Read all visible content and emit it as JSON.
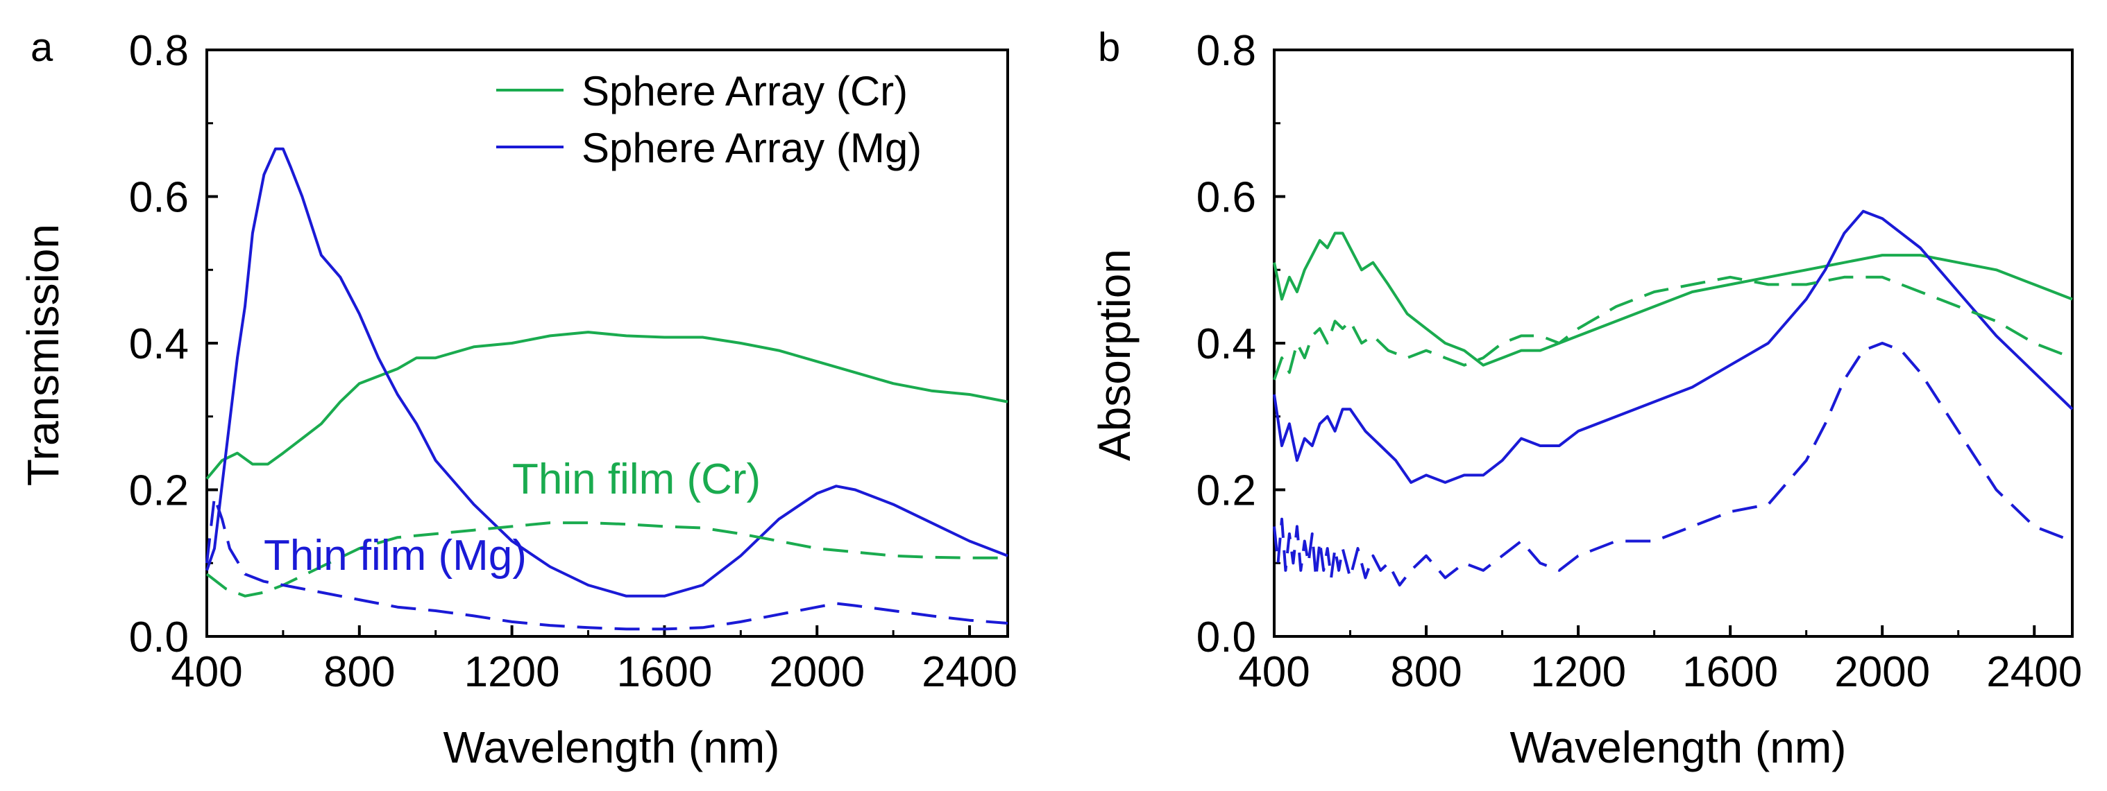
{
  "colors": {
    "green": "#1aab4f",
    "blue": "#1a1ad6",
    "axis": "#000000"
  },
  "legend": [
    {
      "label": "Sphere Array (Cr)",
      "color": "#1aab4f"
    },
    {
      "label": "Sphere Array (Mg)",
      "color": "#1a1ad6"
    }
  ],
  "chart_data": [
    {
      "type": "line",
      "panel_label": "a",
      "title": "",
      "xlabel": "Wavelength (nm)",
      "ylabel": "Transmission",
      "xlim": [
        400,
        2500
      ],
      "ylim": [
        0.0,
        0.8
      ],
      "xticks": [
        "400",
        "800",
        "1200",
        "1600",
        "2000",
        "2400"
      ],
      "yticks": [
        "0.0",
        "0.2",
        "0.4",
        "0.6",
        "0.8"
      ],
      "annotations": [
        {
          "text": "Thin film (Cr)",
          "color": "#1aab4f",
          "x": 1170,
          "y": 0.185
        },
        {
          "text": "Thin film (Mg)",
          "color": "#1a1ad6",
          "x": 560,
          "y": 0.085
        }
      ],
      "series": [
        {
          "name": "Sphere Array (Cr)",
          "style": "solid",
          "color": "#1aab4f",
          "x": [
            400,
            440,
            480,
            520,
            560,
            600,
            650,
            700,
            750,
            800,
            850,
            900,
            950,
            1000,
            1100,
            1200,
            1300,
            1400,
            1500,
            1600,
            1700,
            1800,
            1900,
            2000,
            2100,
            2200,
            2300,
            2400,
            2500
          ],
          "y": [
            0.215,
            0.24,
            0.25,
            0.235,
            0.235,
            0.25,
            0.27,
            0.29,
            0.32,
            0.345,
            0.355,
            0.365,
            0.38,
            0.38,
            0.395,
            0.4,
            0.41,
            0.415,
            0.41,
            0.408,
            0.408,
            0.4,
            0.39,
            0.375,
            0.36,
            0.345,
            0.335,
            0.33,
            0.32
          ]
        },
        {
          "name": "Sphere Array (Mg)",
          "style": "solid",
          "color": "#1a1ad6",
          "x": [
            400,
            420,
            450,
            480,
            500,
            520,
            550,
            580,
            600,
            620,
            650,
            700,
            750,
            800,
            850,
            900,
            950,
            1000,
            1100,
            1200,
            1300,
            1400,
            1500,
            1600,
            1700,
            1800,
            1900,
            2000,
            2050,
            2100,
            2200,
            2300,
            2400,
            2500
          ],
          "y": [
            0.09,
            0.12,
            0.25,
            0.38,
            0.45,
            0.55,
            0.63,
            0.665,
            0.665,
            0.64,
            0.6,
            0.52,
            0.49,
            0.44,
            0.38,
            0.33,
            0.29,
            0.24,
            0.18,
            0.13,
            0.095,
            0.07,
            0.055,
            0.055,
            0.07,
            0.11,
            0.16,
            0.195,
            0.205,
            0.2,
            0.18,
            0.155,
            0.13,
            0.11
          ]
        },
        {
          "name": "Thin film (Cr)",
          "style": "dashed",
          "color": "#1aab4f",
          "x": [
            400,
            450,
            500,
            550,
            600,
            700,
            800,
            900,
            1000,
            1100,
            1200,
            1300,
            1400,
            1500,
            1600,
            1700,
            1800,
            1900,
            2000,
            2100,
            2200,
            2300,
            2400,
            2500
          ],
          "y": [
            0.085,
            0.065,
            0.055,
            0.06,
            0.07,
            0.095,
            0.12,
            0.135,
            0.14,
            0.145,
            0.15,
            0.155,
            0.155,
            0.153,
            0.15,
            0.148,
            0.14,
            0.13,
            0.12,
            0.115,
            0.11,
            0.108,
            0.107,
            0.107
          ]
        },
        {
          "name": "Thin film (Mg)",
          "style": "dashed",
          "color": "#1a1ad6",
          "x": [
            400,
            420,
            440,
            460,
            500,
            550,
            600,
            700,
            800,
            900,
            1000,
            1100,
            1200,
            1300,
            1400,
            1500,
            1600,
            1700,
            1800,
            1900,
            2000,
            2050,
            2100,
            2200,
            2300,
            2400,
            2500
          ],
          "y": [
            0.1,
            0.19,
            0.16,
            0.12,
            0.085,
            0.075,
            0.07,
            0.06,
            0.05,
            0.04,
            0.035,
            0.028,
            0.02,
            0.015,
            0.012,
            0.01,
            0.01,
            0.012,
            0.02,
            0.03,
            0.04,
            0.045,
            0.042,
            0.035,
            0.028,
            0.022,
            0.018
          ]
        }
      ]
    },
    {
      "type": "line",
      "panel_label": "b",
      "title": "",
      "xlabel": "Wavelength (nm)",
      "ylabel": "Absorption",
      "xlim": [
        400,
        2500
      ],
      "ylim": [
        0.0,
        0.8
      ],
      "xticks": [
        "400",
        "800",
        "1200",
        "1600",
        "2000",
        "2400"
      ],
      "yticks": [
        "0.0",
        "0.2",
        "0.4",
        "0.6",
        "0.8"
      ],
      "annotations": [],
      "series": [
        {
          "name": "Sphere Array (Cr)",
          "style": "solid",
          "color": "#1aab4f",
          "x": [
            400,
            420,
            440,
            460,
            480,
            500,
            520,
            540,
            560,
            580,
            600,
            630,
            660,
            700,
            750,
            800,
            850,
            900,
            950,
            1000,
            1050,
            1100,
            1200,
            1300,
            1400,
            1500,
            1600,
            1700,
            1800,
            1900,
            2000,
            2100,
            2200,
            2300,
            2400,
            2500
          ],
          "y": [
            0.51,
            0.46,
            0.49,
            0.47,
            0.5,
            0.52,
            0.54,
            0.53,
            0.55,
            0.55,
            0.53,
            0.5,
            0.51,
            0.48,
            0.44,
            0.42,
            0.4,
            0.39,
            0.37,
            0.38,
            0.39,
            0.39,
            0.41,
            0.43,
            0.45,
            0.47,
            0.48,
            0.49,
            0.5,
            0.51,
            0.52,
            0.52,
            0.51,
            0.5,
            0.48,
            0.46
          ]
        },
        {
          "name": "Sphere Array (Mg)",
          "style": "solid",
          "color": "#1a1ad6",
          "x": [
            400,
            420,
            440,
            460,
            480,
            500,
            520,
            540,
            560,
            580,
            600,
            640,
            680,
            720,
            760,
            800,
            850,
            900,
            950,
            1000,
            1050,
            1100,
            1150,
            1200,
            1300,
            1400,
            1500,
            1600,
            1700,
            1800,
            1850,
            1900,
            1950,
            2000,
            2100,
            2200,
            2300,
            2400,
            2500
          ],
          "y": [
            0.33,
            0.26,
            0.29,
            0.24,
            0.27,
            0.26,
            0.29,
            0.3,
            0.28,
            0.31,
            0.31,
            0.28,
            0.26,
            0.24,
            0.21,
            0.22,
            0.21,
            0.22,
            0.22,
            0.24,
            0.27,
            0.26,
            0.26,
            0.28,
            0.3,
            0.32,
            0.34,
            0.37,
            0.4,
            0.46,
            0.5,
            0.55,
            0.58,
            0.57,
            0.53,
            0.47,
            0.41,
            0.36,
            0.31
          ]
        },
        {
          "name": "Thin film (Cr)",
          "style": "dashed",
          "color": "#1aab4f",
          "x": [
            400,
            420,
            440,
            460,
            480,
            500,
            520,
            540,
            560,
            580,
            600,
            630,
            660,
            700,
            750,
            800,
            850,
            900,
            950,
            1000,
            1050,
            1100,
            1150,
            1200,
            1300,
            1400,
            1500,
            1600,
            1700,
            1800,
            1900,
            2000,
            2100,
            2200,
            2300,
            2400,
            2500
          ],
          "y": [
            0.35,
            0.38,
            0.36,
            0.4,
            0.38,
            0.41,
            0.42,
            0.4,
            0.43,
            0.42,
            0.43,
            0.4,
            0.41,
            0.39,
            0.38,
            0.39,
            0.38,
            0.37,
            0.38,
            0.4,
            0.41,
            0.41,
            0.4,
            0.42,
            0.45,
            0.47,
            0.48,
            0.49,
            0.48,
            0.48,
            0.49,
            0.49,
            0.47,
            0.45,
            0.43,
            0.4,
            0.38
          ]
        },
        {
          "name": "Thin film (Mg)",
          "style": "dashed",
          "color": "#1a1ad6",
          "x": [
            400,
            410,
            420,
            430,
            440,
            450,
            460,
            470,
            480,
            490,
            500,
            510,
            520,
            530,
            540,
            550,
            560,
            570,
            580,
            600,
            620,
            640,
            660,
            680,
            700,
            730,
            760,
            800,
            850,
            900,
            950,
            1000,
            1050,
            1100,
            1150,
            1200,
            1300,
            1400,
            1500,
            1600,
            1700,
            1800,
            1850,
            1900,
            1950,
            2000,
            2050,
            2100,
            2200,
            2300,
            2400,
            2500
          ],
          "y": [
            0.15,
            0.1,
            0.16,
            0.09,
            0.14,
            0.1,
            0.15,
            0.09,
            0.13,
            0.1,
            0.14,
            0.08,
            0.13,
            0.09,
            0.12,
            0.08,
            0.12,
            0.09,
            0.12,
            0.08,
            0.12,
            0.08,
            0.11,
            0.09,
            0.1,
            0.07,
            0.09,
            0.11,
            0.08,
            0.1,
            0.09,
            0.11,
            0.13,
            0.1,
            0.09,
            0.11,
            0.13,
            0.13,
            0.15,
            0.17,
            0.18,
            0.24,
            0.29,
            0.35,
            0.39,
            0.4,
            0.39,
            0.36,
            0.28,
            0.2,
            0.15,
            0.13
          ]
        }
      ]
    }
  ]
}
